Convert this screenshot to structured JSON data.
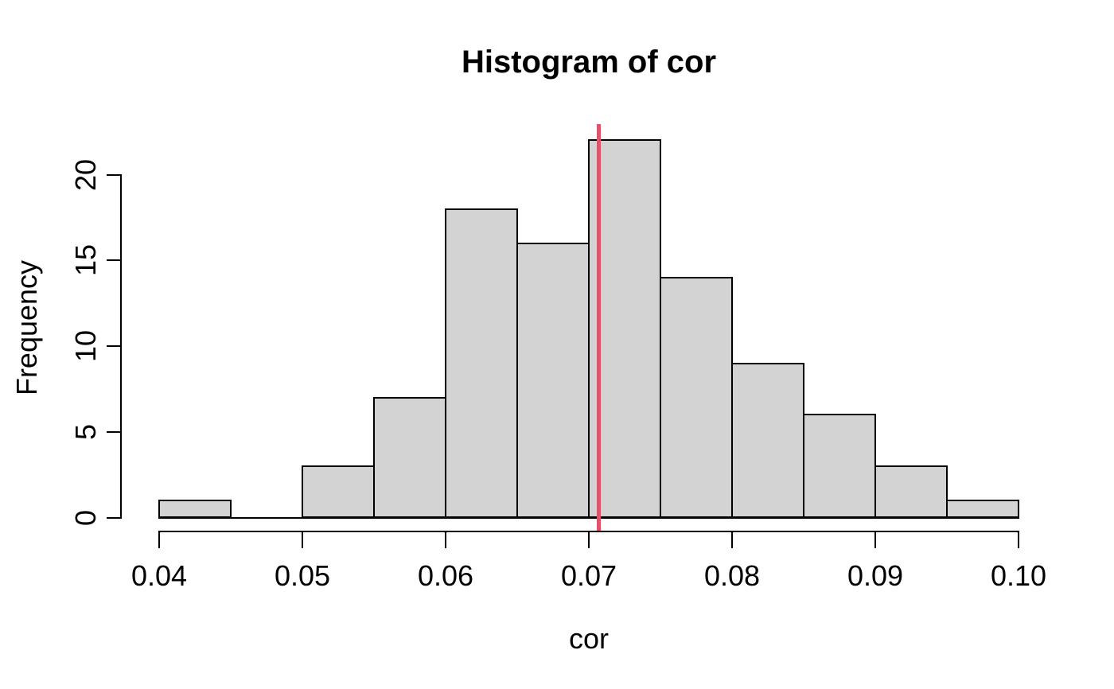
{
  "chart_data": {
    "type": "bar",
    "subtype": "histogram",
    "title": "Histogram of cor",
    "xlabel": "cor",
    "ylabel": "Frequency",
    "bin_edges": [
      0.04,
      0.045,
      0.05,
      0.055,
      0.06,
      0.065,
      0.07,
      0.075,
      0.08,
      0.085,
      0.09,
      0.095,
      0.1
    ],
    "counts": [
      1,
      0,
      3,
      7,
      18,
      16,
      22,
      14,
      9,
      6,
      3,
      1
    ],
    "x_tick_values": [
      0.04,
      0.05,
      0.06,
      0.07,
      0.08,
      0.09,
      0.1
    ],
    "x_tick_labels": [
      "0.04",
      "0.05",
      "0.06",
      "0.07",
      "0.08",
      "0.09",
      "0.10"
    ],
    "y_tick_values": [
      0,
      5,
      10,
      15,
      20
    ],
    "y_tick_labels": [
      "0",
      "5",
      "10",
      "15",
      "20"
    ],
    "xlim": [
      0.04,
      0.1
    ],
    "ylim": [
      0,
      22
    ],
    "grid": false,
    "legend": "none",
    "vline": {
      "value": 0.0707,
      "color": "#DF536B"
    },
    "colors": {
      "bar_fill": "#D3D3D3",
      "bar_border": "#000000",
      "axis": "#000000",
      "text": "#000000",
      "background": "#FFFFFF"
    }
  }
}
